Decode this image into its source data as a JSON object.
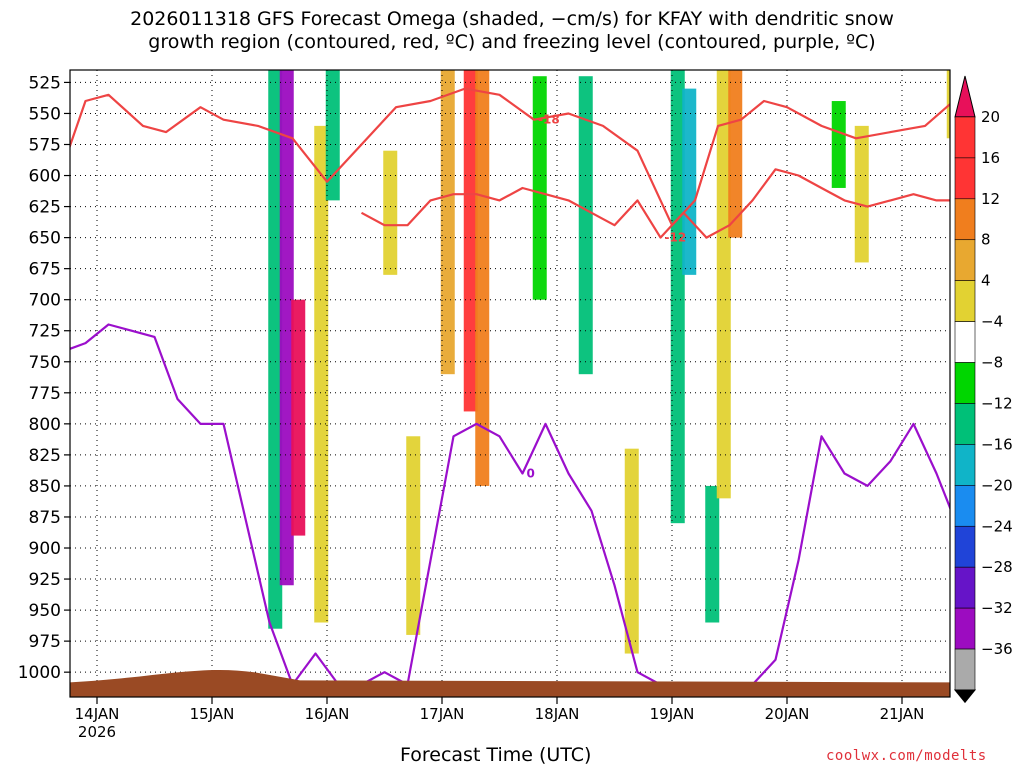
{
  "title_line1": "2026011318 GFS Forecast Omega (shaded, −cm/s) for KFAY with dendritic snow",
  "title_line2": "growth region (contoured, red, ºC) and freezing level (contoured, purple, ºC)",
  "credit": "coolwx.com/modelts",
  "chart_data": {
    "type": "heatmap",
    "xlabel": "Forecast Time (UTC)",
    "x_ticks": [
      "14JAN",
      "15JAN",
      "16JAN",
      "17JAN",
      "18JAN",
      "19JAN",
      "20JAN",
      "21JAN"
    ],
    "x_tick_year": "2026",
    "x_range": [
      "2026-01-13T18",
      "2026-01-21T18"
    ],
    "y_ticks": [
      525,
      550,
      575,
      600,
      625,
      650,
      675,
      700,
      725,
      750,
      775,
      800,
      825,
      850,
      875,
      900,
      925,
      950,
      975,
      1000
    ],
    "y_range_hPa": [
      515,
      1020
    ],
    "grid": "dotted",
    "colorbar": {
      "labels": [
        "20",
        "16",
        "12",
        "8",
        "4",
        "−4",
        "−8",
        "−12",
        "−16",
        "−20",
        "−24",
        "−28",
        "−32",
        "−36"
      ],
      "colors": [
        "#e8105a",
        "#ff3434",
        "#f07e1e",
        "#e8a830",
        "#e2d232",
        "#ffffff",
        "#00d600",
        "#00c078",
        "#10b4c8",
        "#1a8cf0",
        "#2044d8",
        "#6614c8",
        "#9c0cc0",
        "#aaaaaa"
      ]
    },
    "shaded_omega": [
      {
        "t": 15.55,
        "p_top": 515,
        "p_bottom": 965,
        "value": -8
      },
      {
        "t": 15.65,
        "p_top": 515,
        "p_bottom": 930,
        "value": -30
      },
      {
        "t": 15.75,
        "p_top": 700,
        "p_bottom": 890,
        "value": 20
      },
      {
        "t": 15.95,
        "p_top": 560,
        "p_bottom": 960,
        "value": 6
      },
      {
        "t": 16.05,
        "p_top": 515,
        "p_bottom": 620,
        "value": -8
      },
      {
        "t": 16.55,
        "p_top": 580,
        "p_bottom": 680,
        "value": 6
      },
      {
        "t": 16.75,
        "p_top": 810,
        "p_bottom": 970,
        "value": 6
      },
      {
        "t": 17.05,
        "p_top": 515,
        "p_bottom": 760,
        "value": 10
      },
      {
        "t": 17.25,
        "p_top": 515,
        "p_bottom": 790,
        "value": 18
      },
      {
        "t": 17.35,
        "p_top": 515,
        "p_bottom": 850,
        "value": 12
      },
      {
        "t": 17.85,
        "p_top": 520,
        "p_bottom": 700,
        "value": -6
      },
      {
        "t": 18.25,
        "p_top": 520,
        "p_bottom": 760,
        "value": -8
      },
      {
        "t": 18.65,
        "p_top": 820,
        "p_bottom": 985,
        "value": 6
      },
      {
        "t": 19.05,
        "p_top": 515,
        "p_bottom": 880,
        "value": -8
      },
      {
        "t": 19.15,
        "p_top": 530,
        "p_bottom": 680,
        "value": -14
      },
      {
        "t": 19.35,
        "p_top": 850,
        "p_bottom": 960,
        "value": -8
      },
      {
        "t": 19.45,
        "p_top": 515,
        "p_bottom": 860,
        "value": 6
      },
      {
        "t": 19.55,
        "p_top": 515,
        "p_bottom": 650,
        "value": 13
      },
      {
        "t": 20.45,
        "p_top": 540,
        "p_bottom": 610,
        "value": -7
      },
      {
        "t": 20.65,
        "p_top": 560,
        "p_bottom": 670,
        "value": 5
      },
      {
        "t": 21.45,
        "p_top": 515,
        "p_bottom": 570,
        "value": 5
      }
    ],
    "contour_labels": [
      {
        "text": "-12",
        "color": "red"
      },
      {
        "text": "-18",
        "color": "red"
      },
      {
        "text": "0",
        "color": "purple"
      }
    ],
    "series": [
      {
        "name": "-18",
        "color": "#ee4444",
        "t": [
          13.75,
          13.9,
          14.1,
          14.4,
          14.6,
          14.9,
          15.1,
          15.4,
          15.7,
          16.0,
          16.3,
          16.6,
          16.9,
          17.2,
          17.5,
          17.8,
          18.1,
          18.4,
          18.7,
          19.0,
          19.2,
          19.4,
          19.6,
          19.8,
          20.0,
          20.3,
          20.6,
          20.9,
          21.2,
          21.45
        ],
        "p": [
          580,
          540,
          535,
          560,
          565,
          545,
          555,
          560,
          570,
          605,
          575,
          545,
          540,
          530,
          535,
          555,
          550,
          560,
          580,
          640,
          620,
          560,
          555,
          540,
          545,
          560,
          570,
          565,
          560,
          540
        ]
      },
      {
        "name": "-12",
        "color": "#ee4444",
        "t": [
          16.3,
          16.5,
          16.7,
          16.9,
          17.1,
          17.3,
          17.5,
          17.7,
          17.9,
          18.1,
          18.3,
          18.5,
          18.7,
          18.9,
          19.1,
          19.3,
          19.5,
          19.7,
          19.9,
          20.1,
          20.3,
          20.5,
          20.7,
          20.9,
          21.1,
          21.3,
          21.45
        ],
        "p": [
          630,
          640,
          640,
          620,
          615,
          615,
          620,
          610,
          615,
          620,
          630,
          640,
          620,
          650,
          630,
          650,
          640,
          620,
          595,
          600,
          610,
          620,
          625,
          620,
          615,
          620,
          620
        ]
      },
      {
        "name": "0",
        "color": "#9b0fcc",
        "t": [
          13.75,
          13.9,
          14.1,
          14.3,
          14.5,
          14.7,
          14.9,
          15.1,
          15.3,
          15.5,
          15.7,
          15.9,
          16.1,
          16.3,
          16.5,
          16.7,
          16.9,
          17.1,
          17.3,
          17.5,
          17.7,
          17.9,
          18.1,
          18.3,
          18.5,
          18.7,
          18.9,
          19.1,
          19.3,
          19.5,
          19.7,
          19.9,
          20.1,
          20.3,
          20.5,
          20.7,
          20.9,
          21.1,
          21.3,
          21.45
        ],
        "p": [
          740,
          735,
          720,
          725,
          730,
          780,
          800,
          800,
          880,
          960,
          1010,
          985,
          1010,
          1010,
          1000,
          1010,
          910,
          810,
          800,
          810,
          840,
          800,
          840,
          870,
          930,
          1000,
          1010,
          1010,
          1010,
          1010,
          1010,
          990,
          910,
          810,
          840,
          850,
          830,
          800,
          840,
          875
        ]
      }
    ],
    "terrain_pressure_hPa": 1005
  }
}
